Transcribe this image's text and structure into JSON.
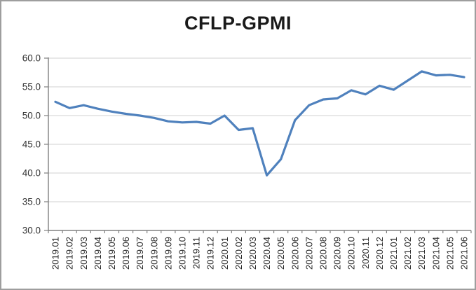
{
  "figure": {
    "background": "#ffffff",
    "border_color": "#9e9e9e"
  },
  "chart_data": {
    "type": "line",
    "title": "CFLP-GPMI",
    "categories": [
      "2019.01",
      "2019.02",
      "2019.03",
      "2019.04",
      "2019.05",
      "2019.06",
      "2019.07",
      "2019.08",
      "2019.09",
      "2019.10",
      "2019.11",
      "2019.12",
      "2020.01",
      "2020.02",
      "2020.03",
      "2020.04",
      "2020.05",
      "2020.06",
      "2020.07",
      "2020.08",
      "2020.09",
      "2020.10",
      "2020.11",
      "2020.12",
      "2021.01",
      "2021.02",
      "2021.03",
      "2021.04",
      "2021.05",
      "2021.06"
    ],
    "series": [
      {
        "name": "CFLP-GPMI",
        "values": [
          52.4,
          51.3,
          51.8,
          51.2,
          50.7,
          50.3,
          50.0,
          49.6,
          49.0,
          48.8,
          48.9,
          48.6,
          50.0,
          47.5,
          47.8,
          39.6,
          42.4,
          49.2,
          51.8,
          52.8,
          53.0,
          54.4,
          53.7,
          55.2,
          54.5,
          56.1,
          57.7,
          57.0,
          57.1,
          56.7
        ]
      }
    ],
    "xlabel": "",
    "ylabel": "",
    "ylim": [
      30.0,
      60.0
    ],
    "ytick_step": 5.0,
    "ytick_labels": [
      "30.0",
      "35.0",
      "40.0",
      "45.0",
      "50.0",
      "55.0",
      "60.0"
    ],
    "grid": "horizontal",
    "legend_position": "none",
    "line_color": "#4F81BD",
    "line_width": 3.2,
    "gridline_color": "#d2d2d2",
    "axis_color": "#808080",
    "tick_label_color": "#333333"
  }
}
